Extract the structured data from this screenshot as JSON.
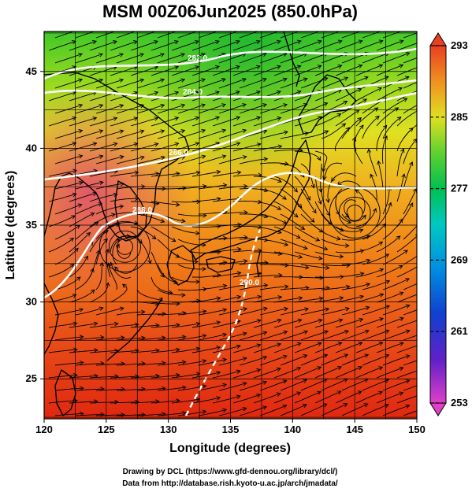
{
  "title": "MSM 00Z06Jun2025 (850.0hPa)",
  "map": {
    "x_axis_label": "Longitude (degrees)",
    "y_axis_label": "Latitude  (degrees)",
    "lon_range": [
      120,
      150
    ],
    "lat_range": [
      22.4,
      47.6
    ],
    "x_ticks": [
      120,
      125,
      130,
      135,
      140,
      145,
      150
    ],
    "y_ticks": [
      25,
      30,
      35,
      40,
      45
    ],
    "grid": true,
    "projection": "equirectangular"
  },
  "colorbar": {
    "min": 253,
    "max": 293,
    "tick_labels": [
      293,
      285,
      277,
      269,
      261,
      253
    ],
    "placement": "right",
    "extend": "both",
    "color_stops": [
      "#e040c8",
      "#4020c8",
      "#0080e0",
      "#00c8d8",
      "#00c060",
      "#40d040",
      "#c8e020",
      "#f0d020",
      "#f09020",
      "#e84020"
    ]
  },
  "isotherms": [
    {
      "label": "282.0"
    },
    {
      "label": "284.0"
    },
    {
      "label": "286.0"
    },
    {
      "label": "288.0"
    },
    {
      "label": "290.0"
    }
  ],
  "features": {
    "cyclones": [
      {
        "name": "anticyclonic-circulation",
        "lon": 145.0,
        "lat": 35.8
      },
      {
        "name": "cyclonic-circulation",
        "lon": 126.5,
        "lat": 33.6
      }
    ]
  },
  "credits": {
    "line1": "Drawing by DCL (https://www.gfd-dennou.org/library/dcl/)",
    "line2": "Data from http://database.rish.kyoto-u.ac.jp/arch/jmadata/"
  }
}
